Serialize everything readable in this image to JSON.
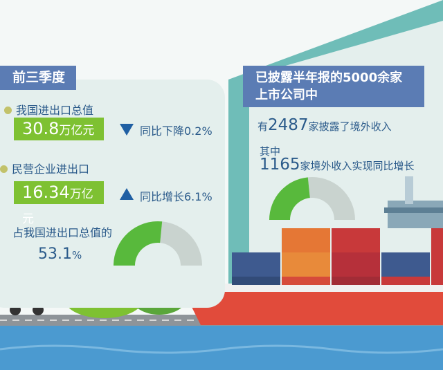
{
  "left": {
    "header": "前三季度",
    "item1": {
      "label": "我国进出口总值",
      "value": "30.8",
      "unit": "万亿元",
      "change": "同比下降0.2%",
      "direction": "down"
    },
    "item2": {
      "label": "民营企业进出口",
      "value": "16.34",
      "unit": "万亿元",
      "change": "同比增长6.1%",
      "direction": "up"
    },
    "share_label": "占我国进出口总值的",
    "share_value": "53.1",
    "share_unit": "%",
    "gauge_percent": 53.1
  },
  "right": {
    "header_line1": "已披露半年报的5000余家",
    "header_line2": "上市公司中",
    "line1_prefix": "有",
    "line1_number": "2487",
    "line1_suffix": "家披露了境外收入",
    "line2": "其中",
    "line3_number": "1165",
    "line3_suffix": "家境外收入实现同比增长",
    "gauge_percent": 46.8
  },
  "colors": {
    "header": "#5b7cb4",
    "green": "#7ec132",
    "gauge_green": "#58b93c",
    "gauge_gray": "#c9d3cf",
    "arrow": "#1f5fa3"
  }
}
